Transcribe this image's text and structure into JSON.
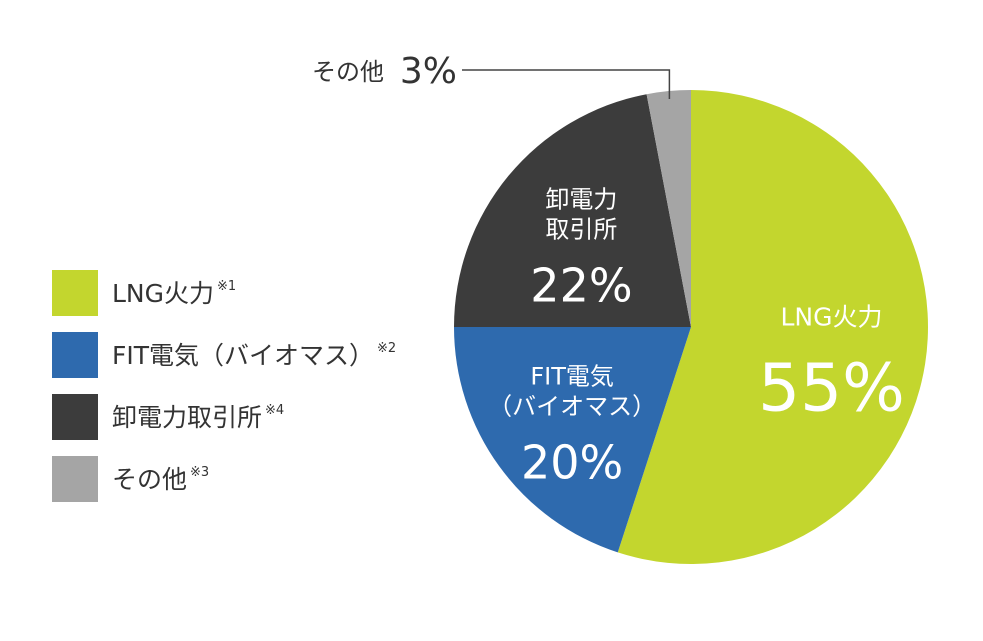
{
  "chart_data": {
    "type": "pie",
    "slices": [
      {
        "name": "LNG火力",
        "legend_label": "LNG火力",
        "legend_note": "※1",
        "inner_lines": [
          "LNG火力"
        ],
        "value_label": "55%",
        "value": 55,
        "color": "#c3d62e"
      },
      {
        "name": "FIT電気（バイオマス）",
        "legend_label": "FIT電気（バイオマス）",
        "legend_note": "※2",
        "inner_lines": [
          "FIT電気",
          "（バイオマス）"
        ],
        "value_label": "20%",
        "value": 20,
        "color": "#2e6aae"
      },
      {
        "name": "卸電力取引所",
        "legend_label": "卸電力取引所",
        "legend_note": "※4",
        "inner_lines": [
          "卸電力",
          "取引所"
        ],
        "value_label": "22%",
        "value": 22,
        "color": "#3c3c3c"
      },
      {
        "name": "その他",
        "legend_label": "その他",
        "legend_note": "※3",
        "callout_name": "その他",
        "value_label": "3%",
        "value": 3,
        "color": "#a5a5a5"
      }
    ],
    "start_angle_deg": 0,
    "direction": "clockwise",
    "legend_position": "left",
    "title": ""
  }
}
